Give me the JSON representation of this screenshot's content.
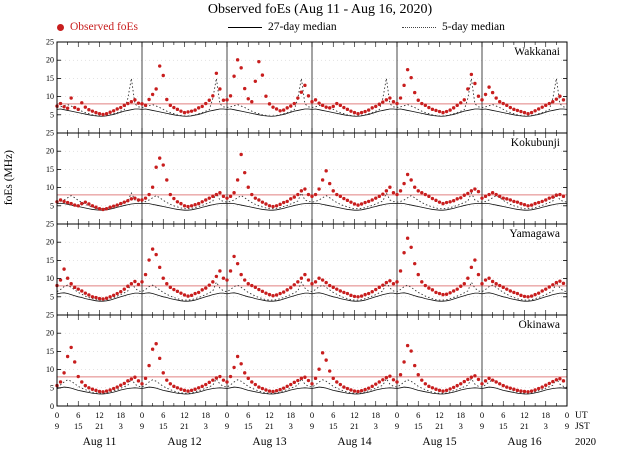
{
  "figure": {
    "title": "Observed foEs (Aug 11 - Aug 16, 2020)",
    "ylabel": "foEs (MHz)"
  },
  "legend": {
    "observed": "Observed foEs",
    "median27": "27-day median",
    "median5": "5-day median"
  },
  "chart_data": {
    "type": "scatter",
    "title": "Observed foEs (Aug 11 - Aug 16, 2020)",
    "ylabel": "foEs (MHz)",
    "ylim": [
      0,
      25
    ],
    "yticks": [
      0,
      5,
      10,
      15,
      20,
      25
    ],
    "x_range_hours": [
      0,
      144
    ],
    "x_unit": "hours UT from 2020-08-11 00:00",
    "threshold_mhz": 8,
    "grid_mhz": [
      5,
      10,
      15,
      20
    ],
    "colors": {
      "observed": "#c81e1e",
      "threshold": "#e08080",
      "median27": "#111111",
      "median5": "#333333"
    },
    "x_axis": {
      "ut_labels": [
        "0",
        "6",
        "12",
        "18"
      ],
      "jst_labels": [
        "9",
        "15",
        "21",
        "3"
      ],
      "days": [
        "Aug 11",
        "Aug 12",
        "Aug 13",
        "Aug 14",
        "Aug 15",
        "Aug 16"
      ],
      "ut_label": "UT",
      "jst_label": "JST",
      "year": "2020"
    },
    "stations": [
      {
        "name": "Wakkanai",
        "observed_hourly": [
          7.4,
          8.1,
          7.2,
          6.8,
          9.6,
          7.0,
          6.5,
          8.3,
          7.1,
          6.4,
          6.0,
          5.6,
          5.3,
          5.1,
          5.3,
          5.7,
          6.1,
          6.6,
          7.0,
          7.6,
          8.1,
          8.6,
          9.1,
          8.2,
          8.0,
          7.6,
          9.2,
          10.6,
          12.1,
          18.4,
          15.8,
          9.2,
          7.6,
          7.0,
          6.5,
          6.0,
          5.6,
          5.8,
          6.0,
          6.3,
          6.9,
          7.3,
          8.1,
          9.0,
          10.2,
          16.4,
          12.1,
          9.0,
          9.1,
          10.2,
          15.6,
          20.1,
          17.9,
          12.2,
          9.4,
          8.6,
          14.2,
          19.6,
          15.9,
          10.1,
          8.0,
          7.1,
          6.6,
          6.1,
          6.3,
          6.9,
          7.4,
          8.1,
          9.6,
          11.2,
          13.1,
          10.2,
          8.6,
          9.1,
          8.2,
          7.6,
          7.1,
          6.9,
          7.3,
          8.1,
          7.6,
          7.0,
          6.5,
          6.0,
          5.6,
          5.3,
          5.6,
          5.9,
          6.3,
          6.9,
          7.3,
          7.9,
          8.5,
          9.1,
          9.6,
          8.6,
          8.1,
          9.6,
          13.1,
          17.4,
          15.2,
          11.1,
          9.0,
          8.1,
          7.6,
          7.0,
          6.5,
          6.2,
          5.9,
          5.6,
          5.9,
          6.3,
          6.9,
          7.6,
          8.3,
          9.1,
          12.1,
          16.1,
          13.6,
          10.1,
          9.1,
          10.6,
          12.6,
          11.1,
          9.6,
          8.6,
          8.1,
          7.6,
          7.0,
          6.5,
          6.2,
          5.9,
          5.6,
          5.3,
          5.6,
          6.1,
          6.6,
          7.1,
          7.6,
          8.1,
          8.6,
          9.3,
          10.1,
          9.1
        ],
        "median_27day_diurnal": [
          6.5,
          6.6,
          6.4,
          6.2,
          6.0,
          5.8,
          5.6,
          5.4,
          5.2,
          5.0,
          4.8,
          4.7,
          4.6,
          4.6,
          4.7,
          4.9,
          5.1,
          5.4,
          5.7,
          6.0,
          6.2,
          6.4,
          6.6,
          6.6
        ],
        "median_5day_diurnal": [
          7.0,
          7.2,
          7.5,
          7.8,
          7.4,
          7.0,
          6.5,
          6.0,
          5.6,
          5.3,
          5.0,
          4.8,
          4.7,
          4.7,
          4.8,
          5.0,
          5.3,
          5.6,
          6.0,
          6.4,
          9.5,
          15.0,
          8.0,
          7.2
        ]
      },
      {
        "name": "Kokubunji",
        "observed_hourly": [
          6.1,
          6.6,
          6.2,
          5.9,
          5.6,
          5.2,
          5.0,
          5.6,
          6.0,
          5.5,
          5.0,
          4.6,
          4.2,
          4.0,
          4.2,
          4.6,
          4.9,
          5.2,
          5.6,
          6.0,
          6.4,
          6.9,
          7.1,
          6.6,
          6.6,
          7.1,
          8.1,
          10.1,
          15.6,
          18.1,
          16.2,
          12.1,
          8.1,
          7.0,
          6.1,
          5.6,
          5.0,
          4.8,
          5.0,
          5.3,
          5.6,
          6.1,
          6.6,
          7.1,
          7.6,
          8.1,
          8.6,
          7.6,
          7.1,
          7.6,
          8.6,
          12.1,
          19.1,
          14.1,
          10.1,
          8.1,
          7.1,
          6.6,
          6.0,
          5.5,
          5.0,
          4.8,
          5.0,
          5.4,
          5.9,
          6.2,
          6.9,
          7.4,
          8.1,
          9.1,
          9.6,
          8.1,
          7.6,
          8.1,
          9.6,
          12.1,
          14.6,
          11.1,
          9.1,
          8.1,
          7.6,
          7.0,
          6.5,
          6.0,
          5.5,
          5.2,
          5.5,
          5.9,
          6.2,
          6.6,
          7.1,
          7.6,
          8.2,
          9.1,
          10.1,
          8.6,
          8.1,
          9.1,
          11.1,
          13.6,
          12.1,
          10.1,
          9.1,
          8.6,
          8.1,
          7.6,
          7.0,
          6.5,
          6.0,
          5.6,
          5.9,
          6.1,
          6.4,
          6.9,
          7.2,
          7.9,
          8.4,
          9.1,
          9.6,
          8.9,
          7.1,
          7.6,
          8.1,
          8.6,
          8.1,
          7.6,
          7.1,
          6.9,
          6.6,
          6.2,
          6.0,
          5.6,
          5.3,
          5.0,
          5.2,
          5.6,
          5.9,
          6.2,
          6.6,
          7.1,
          7.4,
          7.9,
          8.1,
          7.6
        ],
        "median_27day_diurnal": [
          5.6,
          5.7,
          5.6,
          5.4,
          5.2,
          5.0,
          4.8,
          4.6,
          4.4,
          4.2,
          4.0,
          3.9,
          3.8,
          3.8,
          3.9,
          4.1,
          4.3,
          4.6,
          4.8,
          5.1,
          5.3,
          5.5,
          5.6,
          5.7
        ],
        "median_5day_diurnal": [
          6.0,
          6.2,
          6.6,
          7.2,
          7.8,
          7.2,
          6.5,
          5.9,
          5.4,
          5.0,
          4.7,
          4.4,
          4.2,
          4.2,
          4.3,
          4.5,
          4.8,
          5.1,
          5.5,
          5.9,
          6.3,
          8.5,
          6.6,
          6.2
        ]
      },
      {
        "name": "Yamagawa",
        "observed_hourly": [
          8.1,
          9.6,
          12.6,
          10.1,
          8.6,
          7.6,
          7.1,
          6.6,
          6.0,
          5.5,
          5.0,
          4.8,
          4.5,
          4.4,
          4.6,
          5.0,
          5.4,
          5.9,
          6.4,
          7.1,
          7.9,
          8.6,
          9.2,
          8.4,
          9.1,
          11.1,
          15.1,
          18.1,
          16.6,
          13.1,
          10.1,
          8.6,
          7.6,
          7.0,
          6.5,
          6.0,
          5.5,
          5.2,
          5.4,
          5.9,
          6.2,
          6.9,
          7.4,
          8.2,
          9.1,
          10.6,
          12.1,
          10.1,
          9.6,
          12.1,
          16.1,
          14.1,
          11.1,
          9.6,
          8.6,
          8.1,
          7.6,
          7.0,
          6.5,
          6.0,
          5.6,
          5.3,
          5.5,
          5.9,
          6.3,
          6.9,
          7.5,
          8.3,
          9.1,
          10.1,
          11.1,
          9.6,
          8.6,
          9.1,
          10.1,
          9.6,
          8.9,
          8.1,
          7.6,
          7.1,
          6.6,
          6.2,
          5.9,
          5.4,
          5.1,
          5.0,
          5.2,
          5.6,
          5.9,
          6.4,
          7.0,
          7.6,
          8.2,
          8.9,
          9.4,
          8.6,
          9.1,
          12.1,
          17.1,
          21.1,
          18.6,
          14.1,
          11.1,
          9.1,
          8.1,
          7.4,
          6.9,
          6.2,
          5.9,
          5.6,
          5.7,
          6.1,
          6.6,
          7.1,
          7.9,
          8.6,
          10.1,
          13.1,
          15.1,
          11.1,
          8.6,
          9.6,
          10.1,
          9.2,
          8.6,
          8.1,
          7.6,
          7.1,
          6.6,
          6.2,
          5.9,
          5.4,
          5.1,
          5.0,
          5.2,
          5.6,
          6.0,
          6.6,
          7.1,
          7.7,
          8.3,
          8.9,
          9.3,
          8.7
        ],
        "median_27day_diurnal": [
          5.8,
          6.0,
          6.1,
          5.9,
          5.6,
          5.3,
          5.0,
          4.8,
          4.5,
          4.3,
          4.1,
          3.9,
          3.8,
          3.8,
          3.9,
          4.1,
          4.4,
          4.7,
          5.0,
          5.3,
          5.6,
          5.8,
          6.0,
          6.0
        ],
        "median_5day_diurnal": [
          6.4,
          7.0,
          7.8,
          8.2,
          7.6,
          6.9,
          6.2,
          5.7,
          5.2,
          4.8,
          4.5,
          4.2,
          4.1,
          4.1,
          4.2,
          4.5,
          4.8,
          5.2,
          5.6,
          6.1,
          6.6,
          9.0,
          7.4,
          6.6
        ]
      },
      {
        "name": "Okinawa",
        "observed_hourly": [
          5.6,
          6.6,
          9.1,
          13.6,
          16.1,
          12.1,
          8.1,
          6.6,
          5.6,
          5.0,
          4.6,
          4.3,
          4.0,
          3.9,
          4.1,
          4.4,
          4.8,
          5.2,
          5.7,
          6.2,
          6.9,
          7.4,
          7.9,
          6.9,
          6.1,
          7.6,
          11.1,
          15.6,
          17.1,
          13.1,
          9.1,
          7.1,
          6.1,
          5.4,
          5.0,
          4.6,
          4.3,
          4.1,
          4.3,
          4.6,
          5.0,
          5.4,
          5.9,
          6.5,
          7.1,
          7.7,
          8.1,
          7.1,
          6.6,
          8.1,
          10.6,
          13.6,
          11.6,
          9.1,
          7.6,
          6.6,
          5.9,
          5.2,
          4.8,
          4.4,
          4.1,
          4.0,
          4.2,
          4.5,
          4.9,
          5.4,
          5.9,
          6.5,
          7.0,
          7.6,
          7.9,
          7.0,
          6.1,
          7.6,
          10.1,
          14.6,
          12.6,
          9.6,
          7.6,
          6.6,
          5.9,
          5.2,
          4.8,
          4.4,
          4.1,
          4.0,
          4.2,
          4.5,
          4.9,
          5.4,
          6.0,
          6.6,
          7.2,
          7.8,
          8.2,
          7.2,
          6.6,
          8.6,
          12.1,
          16.6,
          15.1,
          11.1,
          8.6,
          7.1,
          6.1,
          5.4,
          5.0,
          4.6,
          4.3,
          4.1,
          4.3,
          4.7,
          5.1,
          5.6,
          6.1,
          6.7,
          7.3,
          7.9,
          8.3,
          7.3,
          6.1,
          6.9,
          7.6,
          7.1,
          6.6,
          6.1,
          5.6,
          5.2,
          4.9,
          4.6,
          4.3,
          4.1,
          4.0,
          3.9,
          4.1,
          4.4,
          4.8,
          5.2,
          5.7,
          6.2,
          6.7,
          7.2,
          7.5,
          6.9
        ],
        "median_27day_diurnal": [
          4.8,
          5.0,
          5.2,
          5.1,
          4.9,
          4.6,
          4.3,
          4.1,
          3.9,
          3.7,
          3.5,
          3.4,
          3.3,
          3.3,
          3.4,
          3.6,
          3.8,
          4.1,
          4.4,
          4.6,
          4.8,
          4.9,
          5.0,
          4.9
        ],
        "median_5day_diurnal": [
          5.2,
          5.8,
          6.6,
          7.2,
          6.8,
          6.1,
          5.4,
          4.9,
          4.5,
          4.1,
          3.8,
          3.6,
          3.5,
          3.5,
          3.6,
          3.9,
          4.2,
          4.5,
          4.9,
          5.3,
          5.7,
          7.5,
          6.0,
          5.4
        ]
      }
    ]
  }
}
